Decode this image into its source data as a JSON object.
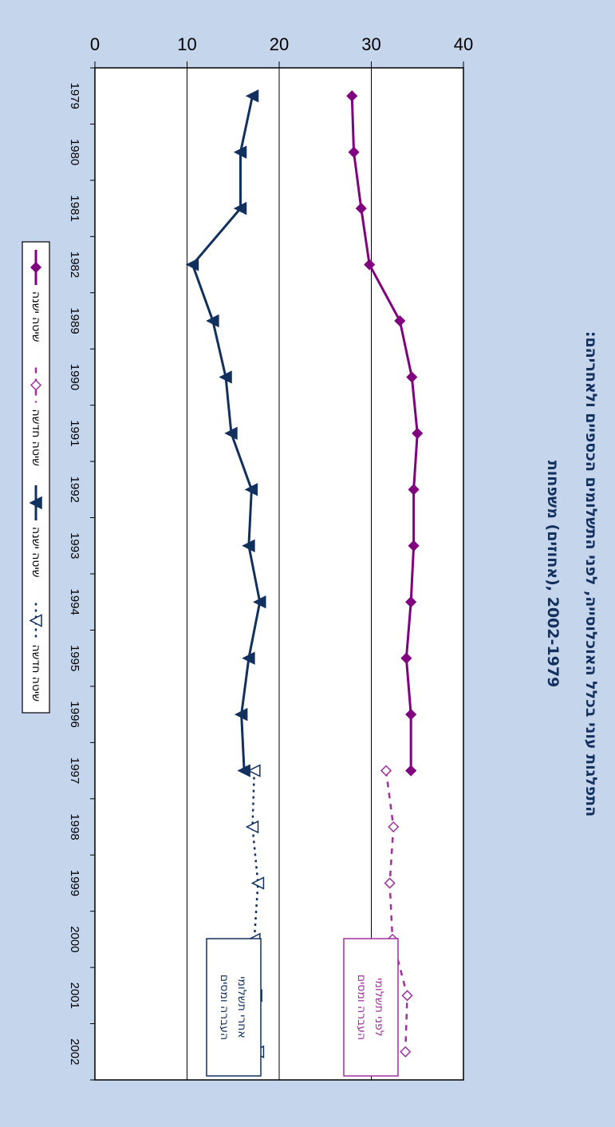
{
  "chart_data": {
    "type": "line",
    "title": "התפלגות עוני בכלל האוכלוסייה, לפני התשלומים הכספיים ולאחריהם:",
    "subtitle": "2002-1979 ,(אחוזים) משפחות",
    "categories": [
      "1979",
      "1980",
      "1981",
      "1982",
      "1989",
      "1990",
      "1991",
      "1992",
      "1993",
      "1994",
      "1995",
      "1996",
      "1997",
      "1998",
      "1999",
      "2000",
      "2001",
      "2002"
    ],
    "ylim": [
      0,
      40
    ],
    "yticks": [
      "0",
      "10",
      "20",
      "30",
      "40"
    ],
    "grid": true,
    "legend_position": "bottom",
    "series": [
      {
        "name": "שיטה ישנה - לפני",
        "legend_label": "שיטה ישנה",
        "color": "#800080",
        "style": "solid",
        "marker": "diamond",
        "values": [
          27.9,
          28.1,
          28.9,
          29.8,
          33.1,
          34.4,
          35.0,
          34.6,
          34.6,
          34.3,
          33.8,
          34.3,
          34.3,
          null,
          null,
          null,
          null,
          null
        ]
      },
      {
        "name": "שיטה חדשה - לפני",
        "legend_label": "שיטה חדשה",
        "color": "#a0309e",
        "style": "dashed",
        "marker": "open-diamond",
        "values": [
          null,
          null,
          null,
          null,
          null,
          null,
          null,
          null,
          null,
          null,
          null,
          null,
          31.6,
          32.4,
          32.0,
          32.3,
          33.9,
          33.7
        ]
      },
      {
        "name": "שיטה ישנה - אחרי",
        "legend_label": "שיטה ישנה",
        "color": "#12305e",
        "style": "solid",
        "marker": "triangle",
        "values": [
          17.1,
          15.8,
          15.8,
          10.6,
          12.8,
          14.2,
          14.8,
          17.0,
          16.7,
          17.9,
          16.7,
          15.9,
          16.2,
          null,
          null,
          null,
          null,
          null
        ]
      },
      {
        "name": "שיטה חדשה - אחרי",
        "legend_label": "שיטה חדשה",
        "color": "#12305e",
        "style": "dotted",
        "marker": "open-triangle",
        "values": [
          null,
          null,
          null,
          null,
          null,
          null,
          null,
          null,
          null,
          null,
          null,
          null,
          17.3,
          17.1,
          17.7,
          17.3,
          17.5,
          17.7
        ]
      }
    ],
    "annotations": [
      {
        "lines": [
          "לפני תשלומי",
          "העברה ומסים"
        ],
        "color": "#a0309e"
      },
      {
        "lines": [
          "אחרי תשלומי",
          "העברה ומסים"
        ],
        "color": "#12305e"
      }
    ]
  }
}
